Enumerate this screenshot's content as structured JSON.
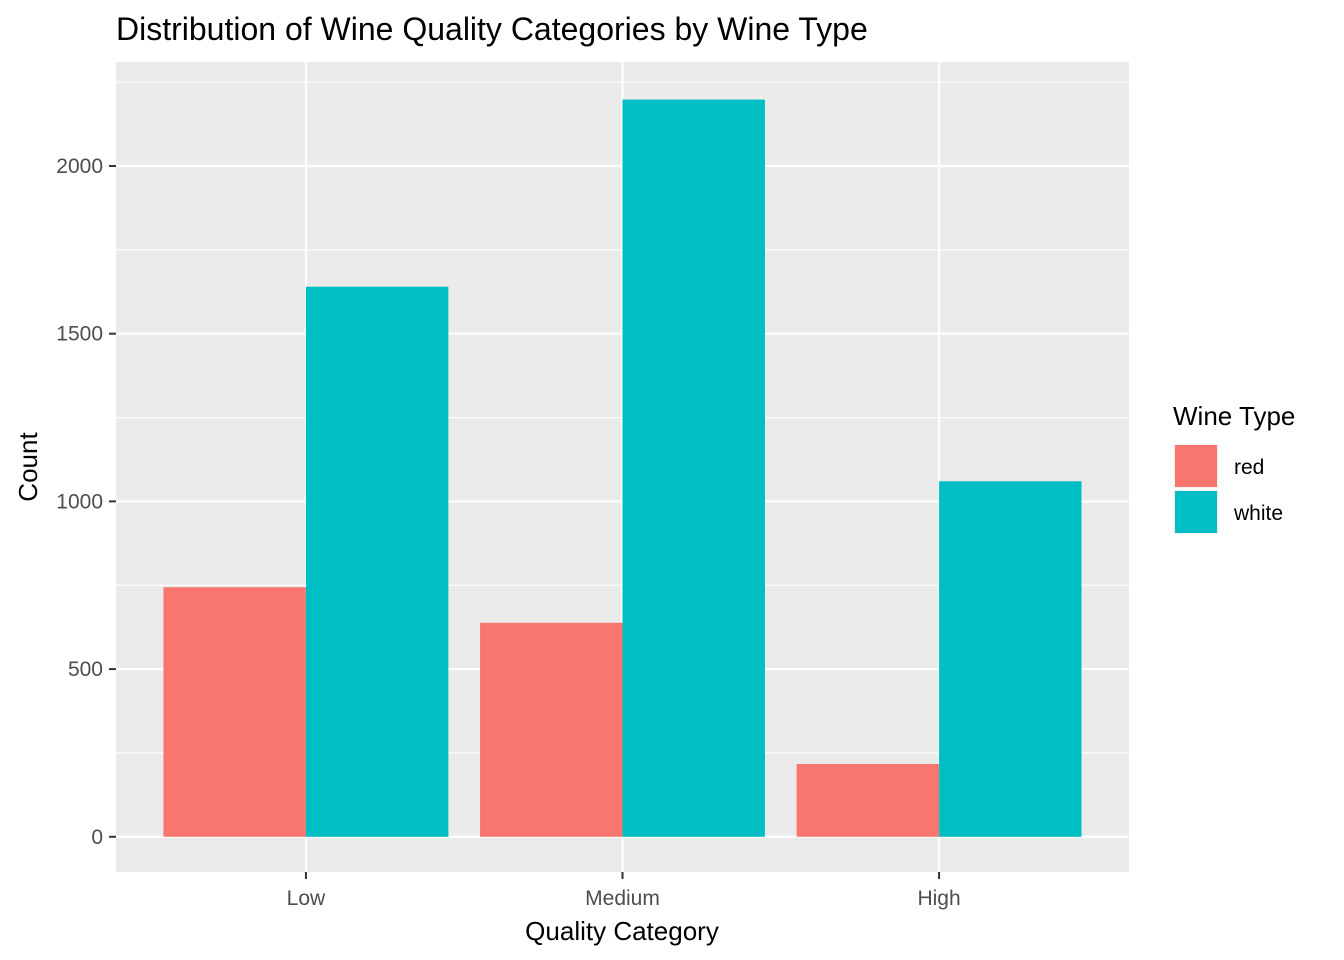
{
  "chart_data": {
    "type": "bar",
    "title": "Distribution of Wine Quality Categories by Wine Type",
    "xlabel": "Quality Category",
    "ylabel": "Count",
    "categories": [
      "Low",
      "Medium",
      "High"
    ],
    "series": [
      {
        "name": "red",
        "color": "#F8766D",
        "values": [
          744,
          638,
          217
        ]
      },
      {
        "name": "white",
        "color": "#00BFC4",
        "values": [
          1640,
          2198,
          1060
        ]
      }
    ],
    "ylim": [
      -105,
      2310
    ],
    "yticks": [
      0,
      500,
      1000,
      1500,
      2000
    ],
    "yminor": [
      250,
      750,
      1250,
      1750,
      2250
    ],
    "grid": true,
    "panel_background": "#EBEBEB",
    "legend": {
      "title": "Wine Type",
      "position": "right"
    }
  }
}
